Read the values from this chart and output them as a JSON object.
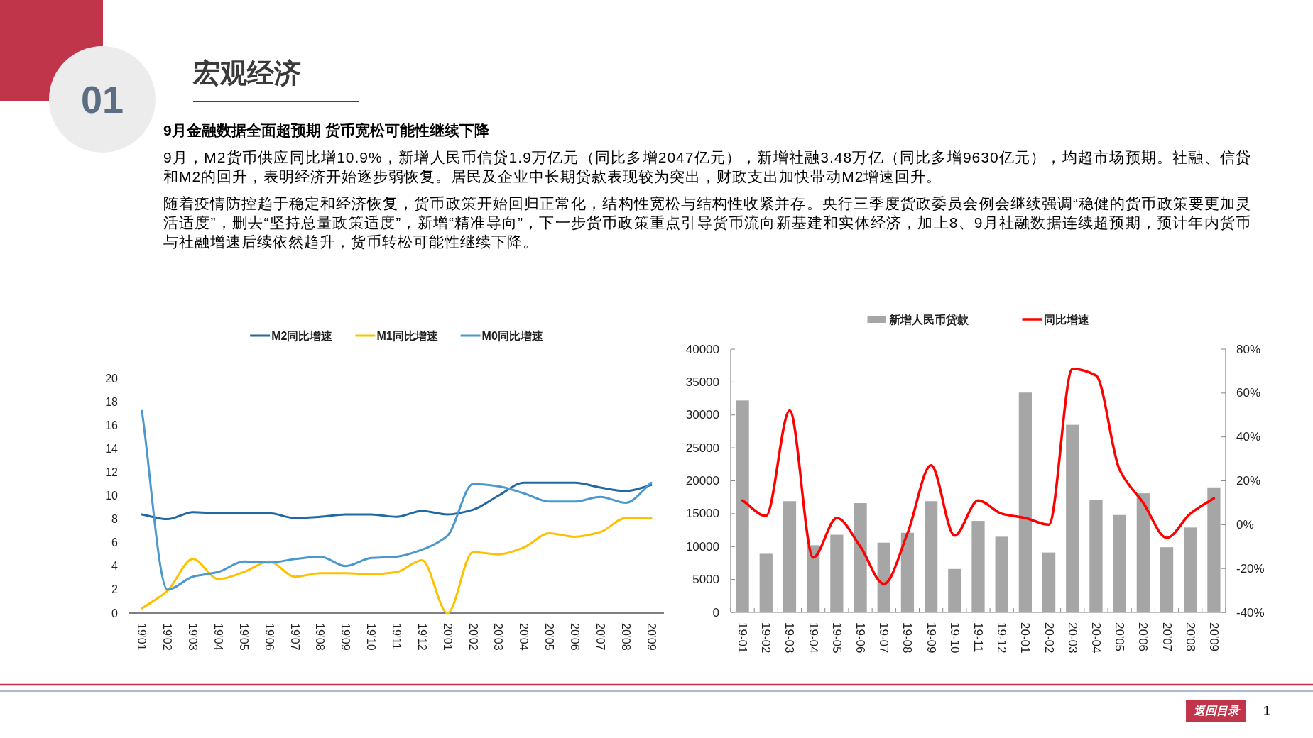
{
  "chart_data": [
    {
      "type": "other",
      "title": "宏观经济",
      "subtitle": "9月金融数据全面超预期 货币宽松可能性继续下降",
      "annotations": [
        "01",
        "9月，M2货币供应同比增10.9%，新增人民币信贷1.9万亿元（同比多增2047亿元），新增社融3.48万亿（同比多增9630亿元），均超市场预期。社融、信贷和M2的回升，表明经济开始逐步弱恢复。居民及企业中长期贷款表现较为突出，财政支出加快带动M2增速回升。",
        "随着疫情防控趋于稳定和经济恢复，货币政策开始回归正常化，结构性宽松与结构性收紧并存。央行三季度货政委员会例会继续强调“稳健的货币政策要更加灵活适度”，删去“坚持总量政策适度”，新增“精准导向”，下一步货币政策重点引导货币流向新基建和实体经济，加上8、9月社融数据连续超预期，预计年内货币与社融增速后续依然趋升，货币转松可能性继续下降。",
        "返回目录",
        "1"
      ]
    },
    {
      "type": "line",
      "categories": [
        "19'01",
        "19'02",
        "19'03",
        "19'04",
        "19'05",
        "19'06",
        "19'07",
        "19'08",
        "19'09",
        "19'10",
        "19'11",
        "19'12",
        "20'01",
        "20'02",
        "20'03",
        "20'04",
        "20'05",
        "20'06",
        "20'07",
        "20'08",
        "20'09"
      ],
      "ylim": [
        0,
        20
      ],
      "yticks": [
        0,
        2,
        4,
        6,
        8,
        10,
        12,
        14,
        16,
        18,
        20
      ],
      "legend": "top",
      "series": [
        {
          "name": "M2同比增速",
          "color": "#2369a1",
          "values": [
            8.4,
            8.0,
            8.6,
            8.5,
            8.5,
            8.5,
            8.1,
            8.2,
            8.4,
            8.4,
            8.2,
            8.7,
            8.4,
            8.8,
            10.0,
            11.1,
            11.1,
            11.1,
            10.7,
            10.4,
            10.9
          ]
        },
        {
          "name": "M1同比增速",
          "color": "#ffc000",
          "values": [
            0.4,
            1.9,
            4.6,
            2.9,
            3.5,
            4.4,
            3.1,
            3.4,
            3.4,
            3.3,
            3.5,
            4.5,
            0.0,
            5.2,
            5.0,
            5.6,
            6.8,
            6.5,
            6.9,
            8.1,
            8.1
          ]
        },
        {
          "name": "M0同比增速",
          "color": "#4a98cd",
          "values": [
            17.2,
            2.0,
            3.1,
            3.5,
            4.4,
            4.3,
            4.6,
            4.8,
            4.0,
            4.7,
            4.8,
            5.4,
            6.6,
            11.0,
            10.8,
            10.2,
            9.5,
            9.5,
            9.9,
            9.4,
            11.1
          ]
        }
      ]
    },
    {
      "type": "bar",
      "categories": [
        "19-01",
        "19-02",
        "19-03",
        "19-04",
        "19-05",
        "19-06",
        "19-07",
        "19-08",
        "19-09",
        "19-10",
        "19-11",
        "19-12",
        "20-01",
        "20-02",
        "20-03",
        "20-04",
        "20'05",
        "20'06",
        "20'07",
        "20'08",
        "20'09"
      ],
      "ylim": [
        0,
        40000
      ],
      "yticks": [
        0,
        5000,
        10000,
        15000,
        20000,
        25000,
        30000,
        35000,
        40000
      ],
      "y2lim": [
        -40,
        80
      ],
      "y2ticks": [
        {
          "value": -40,
          "label": "-40%"
        },
        {
          "value": -20,
          "label": "-20%"
        },
        {
          "value": 0,
          "label": "0%"
        },
        {
          "value": 20,
          "label": "20%"
        },
        {
          "value": 40,
          "label": "40%"
        },
        {
          "value": 60,
          "label": "60%"
        },
        {
          "value": 80,
          "label": "80%"
        }
      ],
      "legend": "top",
      "series": [
        {
          "name": "新增人民币贷款",
          "color": "#a6a6a6",
          "values": [
            32200,
            8900,
            16900,
            10200,
            11800,
            16600,
            10600,
            12100,
            16900,
            6600,
            13900,
            11500,
            33400,
            9100,
            28500,
            17100,
            14800,
            18100,
            9900,
            12900,
            19000
          ]
        },
        {
          "name": "同比增速",
          "type": "line",
          "axis": "y2",
          "color": "#ff0000",
          "values": [
            11,
            4,
            52,
            -15,
            3,
            -10,
            -27,
            -4,
            27,
            -5,
            11,
            5,
            3,
            0,
            71,
            68,
            25,
            10,
            -6,
            5,
            12
          ]
        }
      ]
    }
  ]
}
